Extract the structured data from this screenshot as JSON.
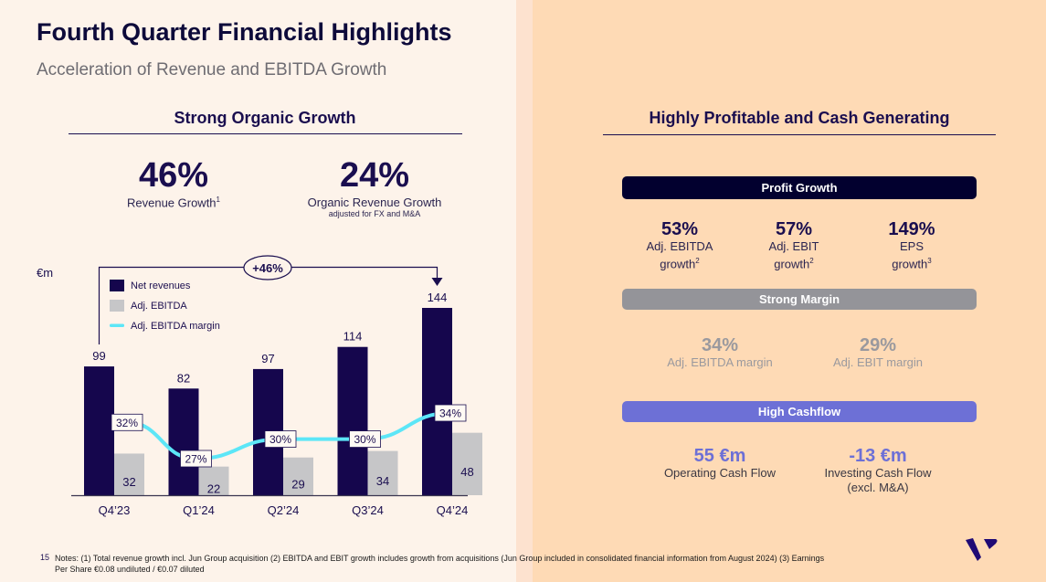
{
  "header": {
    "title": "Fourth Quarter Financial Highlights",
    "subtitle": "Acceleration of Revenue and EBITDA Growth"
  },
  "left": {
    "section_title": "Strong Organic Growth",
    "kpis": [
      {
        "value": "46%",
        "label": "Revenue Growth",
        "sup": "1",
        "sublabel": ""
      },
      {
        "value": "24%",
        "label": "Organic Revenue Growth",
        "sup": "",
        "sublabel": "adjusted for FX and M&A"
      }
    ]
  },
  "chart_data": {
    "type": "bar",
    "unit_label": "€m",
    "categories": [
      "Q4’23",
      "Q1’24",
      "Q2’24",
      "Q3’24",
      "Q4’24"
    ],
    "series": [
      {
        "name": "Net revenues",
        "kind": "bar",
        "color": "#15064d",
        "values": [
          99,
          82,
          97,
          114,
          144
        ]
      },
      {
        "name": "Adj. EBITDA",
        "kind": "bar",
        "color": "#c6c6c8",
        "values": [
          32,
          22,
          29,
          34,
          48
        ]
      },
      {
        "name": "Adj. EBITDA margin",
        "kind": "line",
        "color": "#5ce6f7",
        "values": [
          32,
          27,
          30,
          30,
          34
        ],
        "labels": [
          "32%",
          "27%",
          "30%",
          "30%",
          "34%"
        ]
      }
    ],
    "annotation": {
      "label": "+46%",
      "from": "Q4’23",
      "to": "Q4’24"
    },
    "legend": "top-left",
    "ylim": [
      0,
      150
    ],
    "grid": false
  },
  "right": {
    "section_title": "Highly Profitable and Cash Generating",
    "profit_growth": {
      "header": "Profit Growth",
      "color": "#02002f",
      "items": [
        {
          "value": "53%",
          "line1": "Adj. EBITDA",
          "line2": "growth",
          "sup": "2"
        },
        {
          "value": "57%",
          "line1": "Adj. EBIT",
          "line2": "growth",
          "sup": "2"
        },
        {
          "value": "149%",
          "line1": "EPS",
          "line2": "growth",
          "sup": "3"
        }
      ]
    },
    "strong_margin": {
      "header": "Strong Margin",
      "color": "#949499",
      "items": [
        {
          "value": "34%",
          "label": "Adj. EBITDA margin"
        },
        {
          "value": "29%",
          "label": "Adj. EBIT margin"
        }
      ]
    },
    "high_cashflow": {
      "header": "High Cashflow",
      "color": "#6d70d6",
      "items": [
        {
          "value": "55 €m",
          "line1": "Operating Cash Flow",
          "line2": ""
        },
        {
          "value": "-13 €m",
          "line1": "Investing Cash Flow",
          "line2": "(excl. M&A)"
        }
      ]
    }
  },
  "footer": {
    "page_number": "15",
    "notes_line1": "Notes: (1) Total revenue growth incl. Jun Group acquisition (2) EBITDA and EBIT growth includes growth from acquisitions (Jun Group included in consolidated financial information from August 2024) (3) Earnings",
    "notes_line2": "Per Share €0.08 undiluted / €0.07 diluted"
  },
  "logo": {
    "icon": "brand-v-logo",
    "color": "#1f0a75"
  }
}
